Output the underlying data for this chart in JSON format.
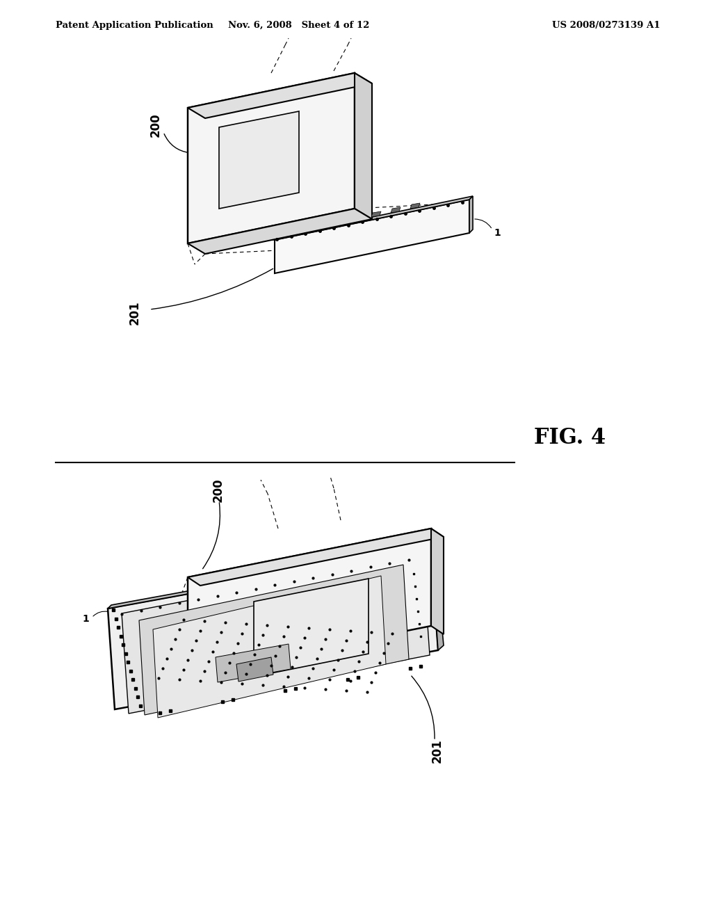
{
  "background_color": "#ffffff",
  "header_left": "Patent Application Publication",
  "header_center": "Nov. 6, 2008   Sheet 4 of 12",
  "header_right": "US 2008/0273139 A1",
  "fig_label": "FIG. 4",
  "label_200_top": "200",
  "label_201_top": "201",
  "label_1_top": "1",
  "label_200_bot": "200",
  "label_201_bot": "201",
  "label_1_bot": "1"
}
